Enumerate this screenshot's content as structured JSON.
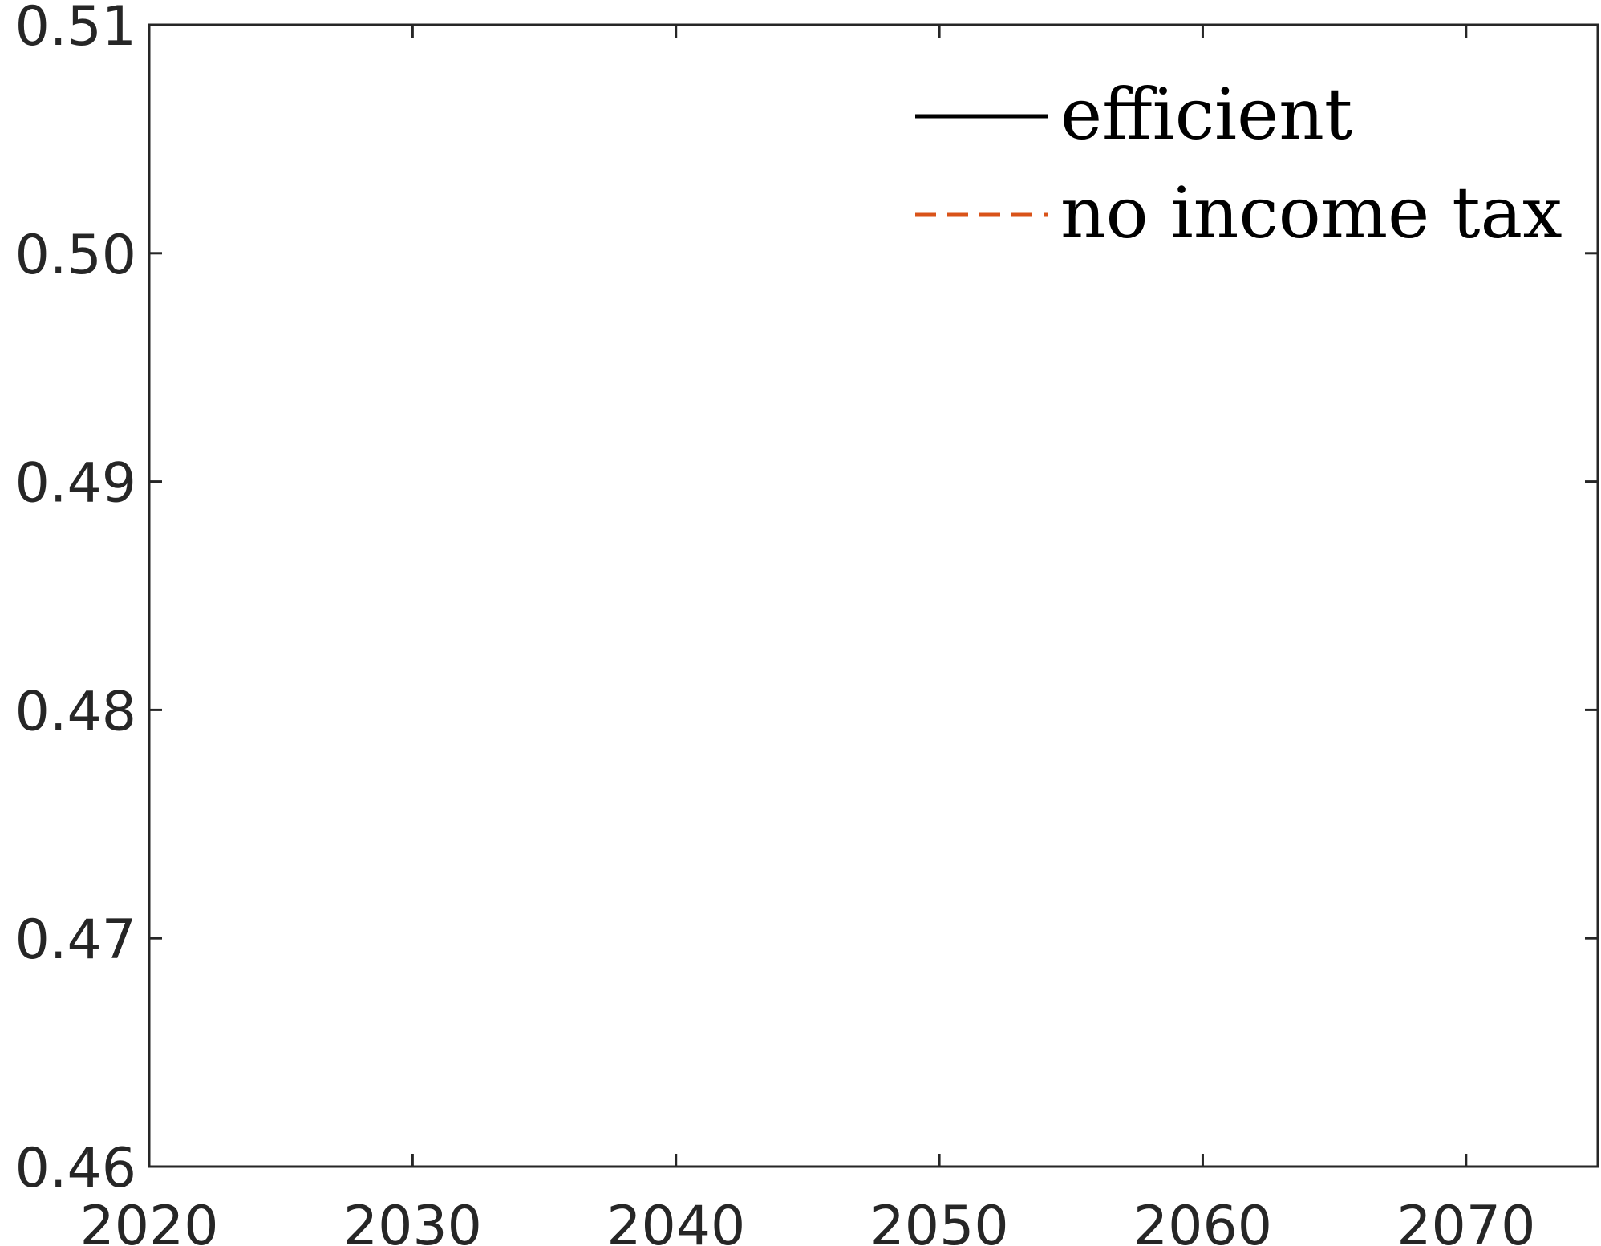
{
  "chart_data": {
    "type": "line",
    "title": "",
    "xlabel": "",
    "ylabel": "",
    "xlim": [
      2020,
      2075
    ],
    "ylim": [
      0.46,
      0.51
    ],
    "x_ticks": [
      2020,
      2030,
      2040,
      2050,
      2060,
      2070
    ],
    "x_tick_labels": [
      "2020",
      "2030",
      "2040",
      "2050",
      "2060",
      "2070"
    ],
    "y_ticks": [
      0.46,
      0.47,
      0.48,
      0.49,
      0.5,
      0.51
    ],
    "y_tick_labels": [
      "0.46",
      "0.47",
      "0.48",
      "0.49",
      "0.50",
      "0.51"
    ],
    "grid": false,
    "legend_position": "top-right",
    "series": [
      {
        "name": "efficient",
        "color": "#000000",
        "line_style": "solid",
        "x": [],
        "y": []
      },
      {
        "name": "no income tax",
        "color": "#D95319",
        "line_style": "dashed",
        "x": [],
        "y": []
      }
    ]
  }
}
